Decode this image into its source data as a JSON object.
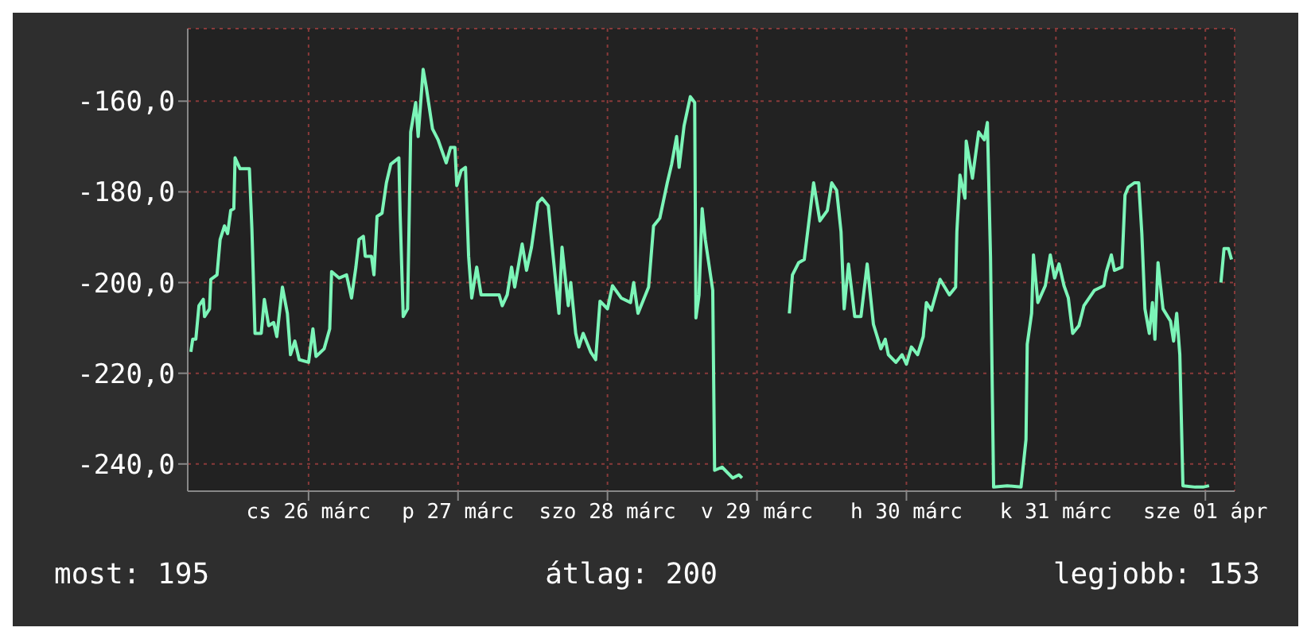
{
  "chart_data": {
    "type": "line",
    "xlim": [
      "--03-25T16:36",
      "--04-01T16:42"
    ],
    "ylim": [
      -246,
      -144
    ],
    "xticks": [
      {
        "value": "--03-26T12:00",
        "label": "cs 26 márc"
      },
      {
        "value": "--03-27T12:00",
        "label": "p 27 márc"
      },
      {
        "value": "--03-28T12:00",
        "label": "szo 28 márc"
      },
      {
        "value": "--03-29T12:00",
        "label": "v 29 márc"
      },
      {
        "value": "--03-30T12:00",
        "label": "h 30 márc"
      },
      {
        "value": "--03-31T12:00",
        "label": "k 31 márc"
      },
      {
        "value": "--04-01T12:00",
        "label": "sze 01 ápr"
      }
    ],
    "yticks": [
      {
        "value": -160,
        "label": "-160,0"
      },
      {
        "value": -180,
        "label": "-180,0"
      },
      {
        "value": -200,
        "label": "-200,0"
      },
      {
        "value": -220,
        "label": "-220,0"
      },
      {
        "value": -240,
        "label": "-240,0"
      }
    ],
    "grid": true,
    "marker": "none",
    "line_style": "solid",
    "annotations": [
      "most: 195",
      "átlag: 200",
      "legjobb: 153"
    ],
    "series": [
      {
        "color": "#7cf5b8",
        "x": [
          "--03-25T17:06",
          "--03-25T17:24",
          "--03-25T17:54",
          "--03-25T18:24",
          "--03-25T19:06",
          "--03-25T19:18",
          "--03-25T20:06",
          "--03-25T20:18",
          "--03-25T21:18",
          "--03-25T21:48",
          "--03-25T22:30",
          "--03-25T23:00",
          "--03-25T23:30",
          "--03-26T00:00",
          "--03-26T00:12",
          "--03-26T01:00",
          "--03-26T02:30",
          "--03-26T02:54",
          "--03-26T03:24",
          "--03-26T04:24",
          "--03-26T04:54",
          "--03-26T05:36",
          "--03-26T06:24",
          "--03-26T06:54",
          "--03-26T07:48",
          "--03-26T08:36",
          "--03-26T09:06",
          "--03-26T09:48",
          "--03-26T10:30",
          "--03-26T12:00",
          "--03-26T12:42",
          "--03-26T13:12",
          "--03-26T14:30",
          "--03-26T15:24",
          "--03-26T15:42",
          "--03-26T16:54",
          "--03-26T18:06",
          "--03-26T18:54",
          "--03-26T19:36",
          "--03-26T20:06",
          "--03-26T20:48",
          "--03-26T21:06",
          "--03-26T22:06",
          "--03-26T22:30",
          "--03-26T23:00",
          "--03-26T23:48",
          "--03-27T00:30",
          "--03-27T01:12",
          "--03-27T02:30",
          "--03-27T02:42",
          "--03-27T03:12",
          "--03-27T03:54",
          "--03-27T04:24",
          "--03-27T05:12",
          "--03-27T05:36",
          "--03-27T06:24",
          "--03-27T06:54",
          "--03-27T07:54",
          "--03-27T08:48",
          "--03-27T10:06",
          "--03-27T10:48",
          "--03-27T11:30",
          "--03-27T11:48",
          "--03-27T12:30",
          "--03-27T13:12",
          "--03-27T13:42",
          "--03-27T14:12",
          "--03-27T15:00",
          "--03-27T15:42",
          "--03-27T18:36",
          "--03-27T19:06",
          "--03-27T19:54",
          "--03-27T20:36",
          "--03-27T21:06",
          "--03-27T22:18",
          "--03-27T23:00",
          "--03-27T23:48",
          "--03-28T00:48",
          "--03-28T01:30",
          "--03-28T02:30",
          "--03-28T03:12",
          "--03-28T04:12",
          "--03-28T04:42",
          "--03-28T05:42",
          "--03-28T06:06",
          "--03-28T06:54",
          "--03-28T07:24",
          "--03-28T08:06",
          "--03-28T09:18",
          "--03-28T10:06",
          "--03-28T10:48",
          "--03-28T12:00",
          "--03-28T12:48",
          "--03-28T14:12",
          "--03-28T15:42",
          "--03-28T16:12",
          "--03-28T16:54",
          "--03-28T18:36",
          "--03-28T19:24",
          "--03-28T20:24",
          "--03-28T21:36",
          "--03-28T22:18",
          "--03-28T23:06",
          "--03-28T23:30",
          "--03-29T00:18",
          "--03-29T01:18",
          "--03-29T02:00",
          "--03-29T02:12",
          "--03-29T02:42",
          "--03-29T03:12",
          "--03-29T03:42",
          "--03-29T04:54",
          "--03-29T05:12",
          "--03-29T06:24",
          "--03-29T08:06",
          "--03-29T09:06",
          "--03-29T09:36",
          "--03-29T13:00",
          "--03-29T17:12",
          "--03-29T17:42",
          "--03-29T18:42",
          "--03-29T19:36",
          "--03-29T21:06",
          "--03-29T22:06",
          "--03-29T23:18",
          "--03-30T00:00",
          "--03-30T00:48",
          "--03-30T01:30",
          "--03-30T02:00",
          "--03-30T02:42",
          "--03-30T03:42",
          "--03-30T04:42",
          "--03-30T05:42",
          "--03-30T06:42",
          "--03-30T07:54",
          "--03-30T08:36",
          "--03-30T09:06",
          "--03-30T10:18",
          "--03-30T11:18",
          "--03-30T12:00",
          "--03-30T12:48",
          "--03-30T13:48",
          "--03-30T14:42",
          "--03-30T15:12",
          "--03-30T16:00",
          "--03-30T17:24",
          "--03-30T18:54",
          "--03-30T19:54",
          "--03-30T20:06",
          "--03-30T20:36",
          "--03-30T21:24",
          "--03-30T21:36",
          "--03-30T22:36",
          "--03-30T23:36",
          "--03-31T00:30",
          "--03-31T01:00",
          "--03-31T01:30",
          "--03-31T02:00",
          "--03-31T04:12",
          "--03-31T06:24",
          "--03-31T07:12",
          "--03-31T07:24",
          "--03-31T08:06",
          "--03-31T08:24",
          "--03-31T09:06",
          "--03-31T10:18",
          "--03-31T11:06",
          "--03-31T11:48",
          "--03-31T12:30",
          "--03-31T13:18",
          "--03-31T14:00",
          "--03-31T14:42",
          "--03-31T15:42",
          "--03-31T16:30",
          "--03-31T18:12",
          "--03-31T19:42",
          "--03-31T20:06",
          "--03-31T20:54",
          "--03-31T21:24",
          "--03-31T22:36",
          "--03-31T23:06",
          "--03-31T23:36",
          "--04-01T00:36",
          "--04-01T01:18",
          "--04-01T01:48",
          "--04-01T02:18",
          "--04-01T03:00",
          "--04-01T03:30",
          "--04-01T03:54",
          "--04-01T04:24",
          "--04-01T05:12",
          "--04-01T06:24",
          "--04-01T06:54",
          "--04-01T07:24",
          "--04-01T07:54",
          "--04-01T08:24",
          "--04-01T10:24",
          "--04-01T11:36",
          "--04-01T12:36",
          "--04-01T13:30",
          "--04-01T14:30",
          "--04-01T15:00",
          "--04-01T15:42",
          "--04-01T16:12"
        ],
        "values": [
          -215.3,
          -212.5,
          -212.5,
          -205.1,
          -203.7,
          -207.5,
          -205.8,
          -199.3,
          -198.3,
          -190.5,
          -187.5,
          -189.2,
          -184.1,
          -183.7,
          -172.5,
          -174.9,
          -174.9,
          -188.1,
          -211.2,
          -211.2,
          -203.7,
          -209.5,
          -208.8,
          -211.9,
          -201.0,
          -206.8,
          -215.9,
          -212.9,
          -217.0,
          -217.6,
          -210.2,
          -216.3,
          -214.6,
          -210.2,
          -197.6,
          -199.0,
          -198.3,
          -203.4,
          -196.6,
          -190.5,
          -189.8,
          -194.2,
          -194.2,
          -198.3,
          -185.4,
          -184.7,
          -178.0,
          -173.9,
          -172.5,
          -184.7,
          -207.5,
          -205.8,
          -166.8,
          -160.3,
          -167.8,
          -153,
          -156.9,
          -166.1,
          -168.5,
          -173.6,
          -170.2,
          -170.2,
          -178.6,
          -175.3,
          -174.6,
          -194.2,
          -203.4,
          -196.6,
          -202.7,
          -202.7,
          -205.1,
          -202.7,
          -196.6,
          -201.0,
          -191.5,
          -197.3,
          -192.2,
          -182.4,
          -181.4,
          -183.1,
          -193.2,
          -206.8,
          -192.2,
          -205.1,
          -200.0,
          -211.2,
          -214.2,
          -211.2,
          -215.3,
          -217.0,
          -204.1,
          -205.8,
          -200.7,
          -203.4,
          -204.4,
          -200.0,
          -206.8,
          -201.0,
          -187.5,
          -185.8,
          -178.0,
          -173.9,
          -167.8,
          -174.6,
          -165.4,
          -159.0,
          -160.3,
          -207.8,
          -202.7,
          -183.7,
          -190.5,
          -201.7,
          -241.4,
          -240.7,
          -243.1,
          -242.4,
          -243.1,
          null,
          -206.8,
          -198.3,
          -195.6,
          -194.9,
          -178.0,
          -186.4,
          -184.1,
          -178.0,
          -179.7,
          -188.8,
          -205.8,
          -195.9,
          -207.5,
          -207.5,
          -195.9,
          -209.2,
          -214.6,
          -212.5,
          -215.9,
          -217.6,
          -215.9,
          -218.0,
          -214.2,
          -215.9,
          -211.9,
          -204.4,
          -206.1,
          -199.3,
          -202.7,
          -201.0,
          -188.8,
          -176.3,
          -181.4,
          -168.8,
          -177.0,
          -166.8,
          -168.5,
          -164.7,
          -194.2,
          -245.1,
          -244.8,
          -245.1,
          -234.6,
          -213.6,
          -206.8,
          -193.9,
          -204.4,
          -200.7,
          -193.9,
          -199.0,
          -195.9,
          -200.7,
          -203.4,
          -211.2,
          -209.5,
          -205.1,
          -201.7,
          -200.7,
          -197.6,
          -193.9,
          -197.3,
          -196.6,
          -180.7,
          -179.0,
          -178.0,
          -178.0,
          -189.2,
          -205.8,
          -211.2,
          -204.4,
          -212.5,
          -195.6,
          -205.8,
          -208.5,
          -212.9,
          -206.8,
          -215.9,
          -244.8,
          -245.1,
          -245.1,
          -244.8,
          null,
          -200.0,
          -192.5,
          -192.5,
          -194.9
        ]
      }
    ]
  }
}
